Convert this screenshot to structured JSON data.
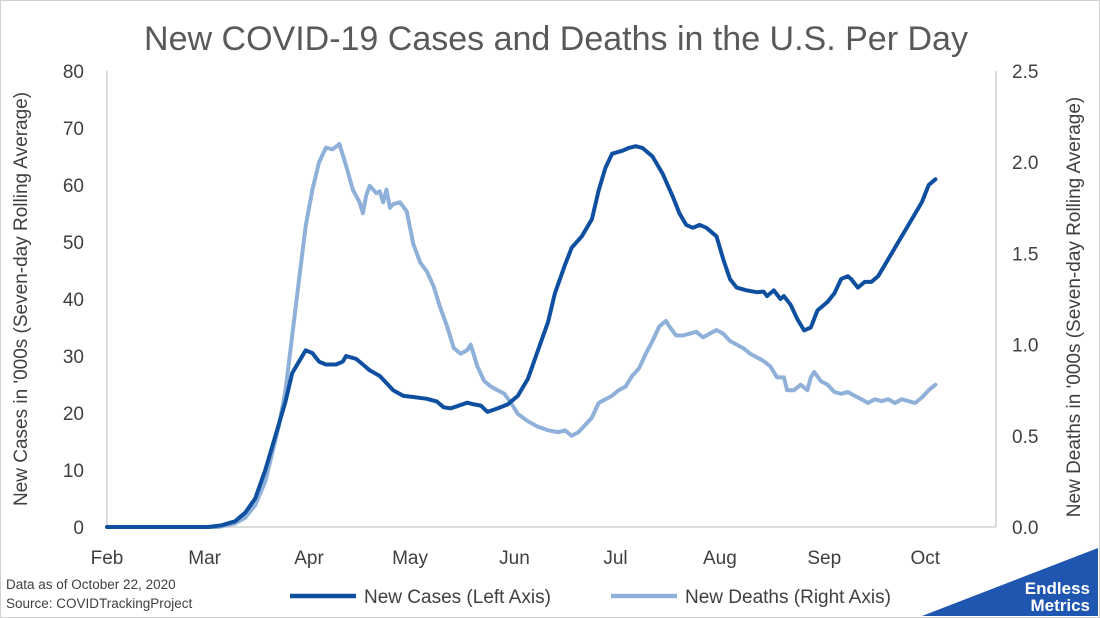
{
  "chart_data": {
    "type": "line",
    "title": "New COVID-19 Cases and Deaths in the U.S. Per Day",
    "ylabel_left": "New Cases in '000s (Seven-day Rolling Average)",
    "ylabel_right": "New Deaths in '000s (Seven-day Rolling Average)",
    "ylim_left": [
      0,
      80
    ],
    "ylim_right": [
      0,
      2.5
    ],
    "yticks_left": [
      "0",
      "10",
      "20",
      "30",
      "40",
      "50",
      "60",
      "70",
      "80"
    ],
    "yticks_right": [
      "0.0",
      "0.5",
      "1.0",
      "1.5",
      "2.0",
      "2.5"
    ],
    "x_domain": [
      0,
      264
    ],
    "month_ticks": [
      {
        "label": "Feb",
        "day": 0
      },
      {
        "label": "Mar",
        "day": 29
      },
      {
        "label": "Apr",
        "day": 60
      },
      {
        "label": "May",
        "day": 90
      },
      {
        "label": "Jun",
        "day": 121
      },
      {
        "label": "Jul",
        "day": 151
      },
      {
        "label": "Aug",
        "day": 182
      },
      {
        "label": "Sep",
        "day": 213
      },
      {
        "label": "Oct",
        "day": 243
      }
    ],
    "grid": false,
    "series": [
      {
        "name": "New Cases (Left Axis)",
        "axis": "left",
        "color": "#0f4fa0",
        "points": [
          [
            0,
            0
          ],
          [
            30,
            0
          ],
          [
            34,
            0.3
          ],
          [
            38,
            1
          ],
          [
            41,
            2.5
          ],
          [
            44,
            5
          ],
          [
            47,
            10
          ],
          [
            50,
            16
          ],
          [
            53,
            22
          ],
          [
            55,
            27
          ],
          [
            57,
            29
          ],
          [
            59,
            31
          ],
          [
            61,
            30.5
          ],
          [
            63,
            29
          ],
          [
            65,
            28.5
          ],
          [
            68,
            28.5
          ],
          [
            70,
            29
          ],
          [
            71,
            30
          ],
          [
            74,
            29.5
          ],
          [
            76,
            28.5
          ],
          [
            78,
            27.5
          ],
          [
            81,
            26.5
          ],
          [
            85,
            24
          ],
          [
            88,
            23
          ],
          [
            91,
            22.8
          ],
          [
            95,
            22.5
          ],
          [
            98,
            22
          ],
          [
            100,
            21
          ],
          [
            102,
            20.8
          ],
          [
            104,
            21.2
          ],
          [
            107,
            21.8
          ],
          [
            109,
            21.5
          ],
          [
            111,
            21.3
          ],
          [
            113,
            20.2
          ],
          [
            116,
            20.8
          ],
          [
            119,
            21.5
          ],
          [
            122,
            23
          ],
          [
            125,
            26
          ],
          [
            128,
            31
          ],
          [
            131,
            36
          ],
          [
            133,
            41
          ],
          [
            136,
            46
          ],
          [
            138,
            49
          ],
          [
            141,
            51
          ],
          [
            144,
            54
          ],
          [
            146,
            59
          ],
          [
            148,
            63
          ],
          [
            150,
            65.5
          ],
          [
            153,
            66
          ],
          [
            155,
            66.5
          ],
          [
            157,
            66.8
          ],
          [
            159,
            66.5
          ],
          [
            162,
            65
          ],
          [
            165,
            62
          ],
          [
            168,
            58
          ],
          [
            170,
            55
          ],
          [
            172,
            53
          ],
          [
            174,
            52.5
          ],
          [
            176,
            53
          ],
          [
            178,
            52.5
          ],
          [
            181,
            51
          ],
          [
            183,
            47
          ],
          [
            185,
            43.5
          ],
          [
            187,
            42
          ],
          [
            190,
            41.5
          ],
          [
            193,
            41.2
          ],
          [
            195,
            41.3
          ],
          [
            196,
            40.5
          ],
          [
            198,
            41.5
          ],
          [
            200,
            40
          ],
          [
            201,
            40.5
          ],
          [
            203,
            39
          ],
          [
            205,
            36.5
          ],
          [
            207,
            34.5
          ],
          [
            209,
            35
          ],
          [
            211,
            38
          ],
          [
            214,
            39.5
          ],
          [
            216,
            41
          ],
          [
            218,
            43.5
          ],
          [
            220,
            44
          ],
          [
            221,
            43.5
          ],
          [
            223,
            42
          ],
          [
            225,
            43
          ],
          [
            227,
            43
          ],
          [
            229,
            44
          ],
          [
            231,
            46
          ],
          [
            234,
            49
          ],
          [
            237,
            52
          ],
          [
            240,
            55
          ],
          [
            242,
            57
          ],
          [
            244,
            60
          ],
          [
            246,
            61
          ]
        ]
      },
      {
        "name": "New Deaths (Right Axis)",
        "axis": "right",
        "color": "#8fb0d8",
        "points": [
          [
            0,
            0
          ],
          [
            33,
            0
          ],
          [
            38,
            0.02
          ],
          [
            41,
            0.05
          ],
          [
            44,
            0.12
          ],
          [
            47,
            0.25
          ],
          [
            49,
            0.4
          ],
          [
            51,
            0.55
          ],
          [
            53,
            0.75
          ],
          [
            55,
            1.05
          ],
          [
            57,
            1.35
          ],
          [
            59,
            1.65
          ],
          [
            61,
            1.85
          ],
          [
            63,
            2.0
          ],
          [
            65,
            2.08
          ],
          [
            67,
            2.07
          ],
          [
            69,
            2.1
          ],
          [
            71,
            1.98
          ],
          [
            73,
            1.85
          ],
          [
            75,
            1.78
          ],
          [
            76,
            1.72
          ],
          [
            77,
            1.82
          ],
          [
            78,
            1.87
          ],
          [
            80,
            1.83
          ],
          [
            81,
            1.84
          ],
          [
            82,
            1.78
          ],
          [
            83,
            1.85
          ],
          [
            84,
            1.75
          ],
          [
            85,
            1.77
          ],
          [
            87,
            1.78
          ],
          [
            89,
            1.73
          ],
          [
            91,
            1.55
          ],
          [
            93,
            1.45
          ],
          [
            95,
            1.4
          ],
          [
            97,
            1.32
          ],
          [
            99,
            1.2
          ],
          [
            101,
            1.1
          ],
          [
            103,
            0.98
          ],
          [
            105,
            0.95
          ],
          [
            107,
            0.97
          ],
          [
            108,
            1.0
          ],
          [
            110,
            0.88
          ],
          [
            112,
            0.8
          ],
          [
            114,
            0.77
          ],
          [
            116,
            0.75
          ],
          [
            118,
            0.73
          ],
          [
            120,
            0.68
          ],
          [
            122,
            0.62
          ],
          [
            125,
            0.58
          ],
          [
            128,
            0.55
          ],
          [
            131,
            0.53
          ],
          [
            134,
            0.52
          ],
          [
            136,
            0.53
          ],
          [
            138,
            0.5
          ],
          [
            140,
            0.52
          ],
          [
            142,
            0.56
          ],
          [
            144,
            0.6
          ],
          [
            146,
            0.68
          ],
          [
            148,
            0.7
          ],
          [
            150,
            0.72
          ],
          [
            152,
            0.75
          ],
          [
            154,
            0.77
          ],
          [
            156,
            0.83
          ],
          [
            158,
            0.87
          ],
          [
            160,
            0.95
          ],
          [
            162,
            1.02
          ],
          [
            164,
            1.1
          ],
          [
            166,
            1.13
          ],
          [
            167,
            1.1
          ],
          [
            169,
            1.05
          ],
          [
            171,
            1.05
          ],
          [
            173,
            1.06
          ],
          [
            175,
            1.07
          ],
          [
            177,
            1.04
          ],
          [
            179,
            1.06
          ],
          [
            181,
            1.08
          ],
          [
            183,
            1.06
          ],
          [
            185,
            1.02
          ],
          [
            187,
            1.0
          ],
          [
            189,
            0.98
          ],
          [
            191,
            0.95
          ],
          [
            193,
            0.93
          ],
          [
            195,
            0.91
          ],
          [
            197,
            0.88
          ],
          [
            199,
            0.82
          ],
          [
            201,
            0.82
          ],
          [
            202,
            0.75
          ],
          [
            204,
            0.75
          ],
          [
            206,
            0.78
          ],
          [
            208,
            0.75
          ],
          [
            209,
            0.82
          ],
          [
            210,
            0.85
          ],
          [
            212,
            0.8
          ],
          [
            214,
            0.78
          ],
          [
            216,
            0.74
          ],
          [
            218,
            0.73
          ],
          [
            220,
            0.74
          ],
          [
            222,
            0.72
          ],
          [
            224,
            0.7
          ],
          [
            226,
            0.68
          ],
          [
            228,
            0.7
          ],
          [
            230,
            0.69
          ],
          [
            232,
            0.7
          ],
          [
            234,
            0.68
          ],
          [
            236,
            0.7
          ],
          [
            238,
            0.69
          ],
          [
            240,
            0.68
          ],
          [
            242,
            0.71
          ],
          [
            244,
            0.75
          ],
          [
            246,
            0.78
          ]
        ]
      }
    ]
  },
  "footnotes": {
    "as_of": "Data as of October 22, 2020",
    "source": "Source: COVIDTrackingProject"
  },
  "logo": {
    "line1": "Endless",
    "line2": "Metrics",
    "color": "#1f56b0"
  }
}
